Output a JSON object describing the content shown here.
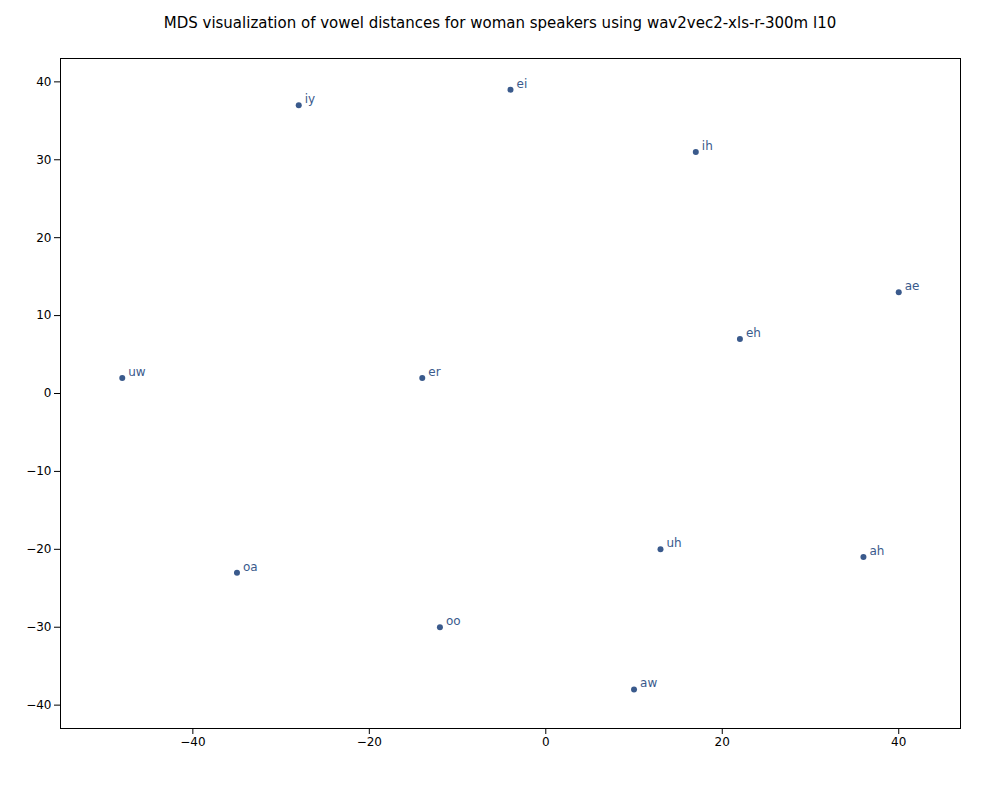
{
  "chart_data": {
    "type": "scatter",
    "title": "MDS visualization of vowel distances for woman speakers using wav2vec2-xls-r-300m l10",
    "x": [
      -28,
      -4,
      17,
      40,
      22,
      -48,
      -14,
      13,
      36,
      -35,
      -12,
      10
    ],
    "values": [
      37,
      39,
      31,
      13,
      7,
      2,
      2,
      -20,
      -21,
      -23,
      -30,
      -38
    ],
    "annotations": [
      {
        "text": "iy",
        "x": -28,
        "y": 37
      },
      {
        "text": "ei",
        "x": -4,
        "y": 39
      },
      {
        "text": "ih",
        "x": 17,
        "y": 31
      },
      {
        "text": "ae",
        "x": 40,
        "y": 13
      },
      {
        "text": "eh",
        "x": 22,
        "y": 7
      },
      {
        "text": "uw",
        "x": -48,
        "y": 2
      },
      {
        "text": "er",
        "x": -14,
        "y": 2
      },
      {
        "text": "uh",
        "x": 13,
        "y": -20
      },
      {
        "text": "ah",
        "x": 36,
        "y": -21
      },
      {
        "text": "oa",
        "x": -35,
        "y": -23
      },
      {
        "text": "oo",
        "x": -12,
        "y": -30
      },
      {
        "text": "aw",
        "x": 10,
        "y": -38
      }
    ],
    "color": "#3a5a8c",
    "xlim": [
      -55,
      47
    ],
    "ylim": [
      -43,
      43
    ],
    "xticks": [
      -40,
      -20,
      0,
      20,
      40
    ],
    "yticks": [
      -40,
      -30,
      -20,
      -10,
      0,
      10,
      20,
      30,
      40
    ],
    "grid": false
  }
}
